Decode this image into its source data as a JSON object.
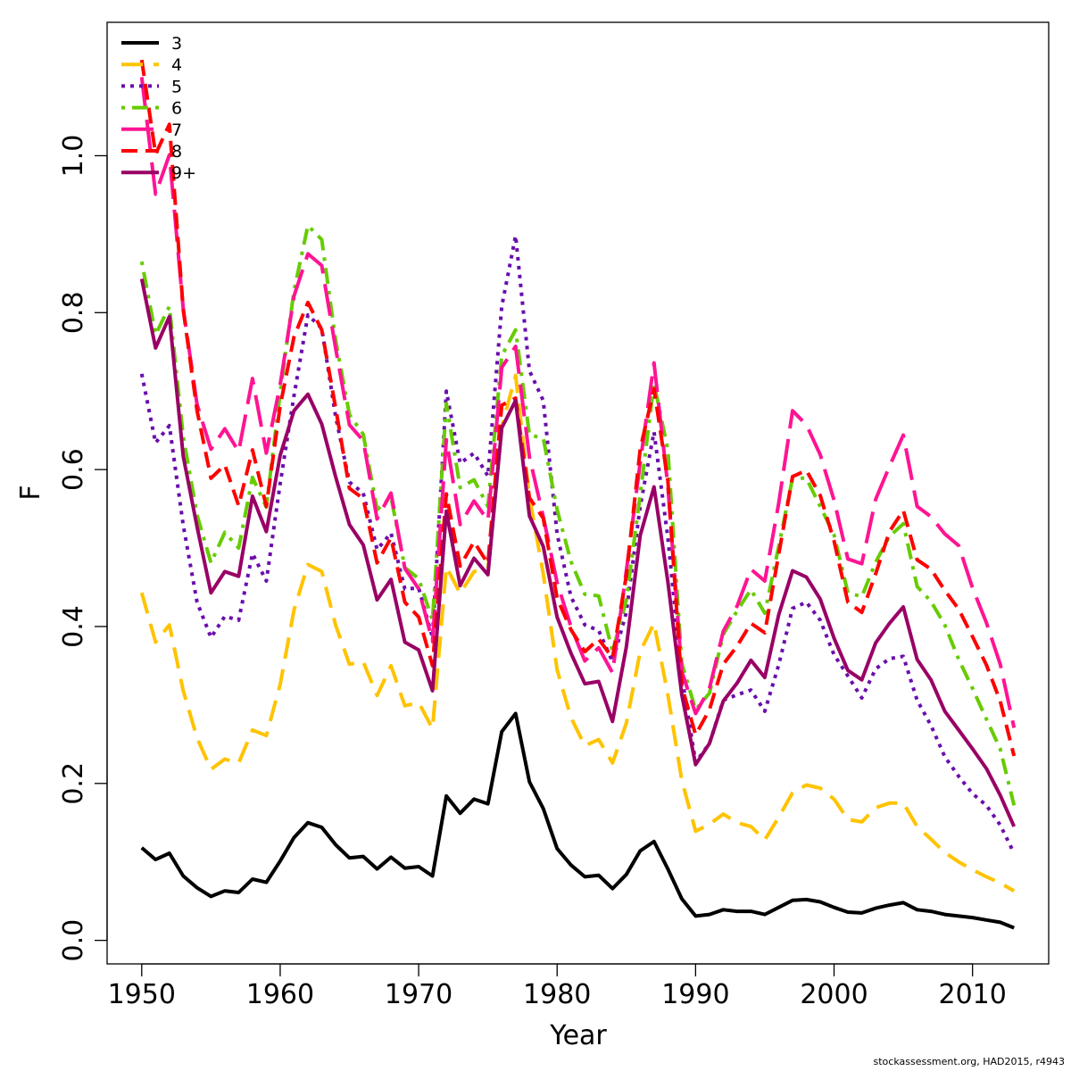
{
  "chart_data": {
    "type": "line",
    "xlabel": "Year",
    "ylabel": "F",
    "xlim": [
      1947.5,
      2015.5
    ],
    "ylim": [
      -0.03,
      1.17
    ],
    "xticks": [
      1950,
      1960,
      1970,
      1980,
      1990,
      2000,
      2010
    ],
    "yticks": [
      0.0,
      0.2,
      0.4,
      0.6,
      0.8,
      1.0
    ],
    "ytick_labels": [
      "0.0",
      "0.2",
      "0.4",
      "0.6",
      "0.8",
      "1.0"
    ],
    "legend_position": "top-left",
    "x": [
      1950,
      1951,
      1952,
      1953,
      1954,
      1955,
      1956,
      1957,
      1958,
      1959,
      1960,
      1961,
      1962,
      1963,
      1964,
      1965,
      1966,
      1967,
      1968,
      1969,
      1970,
      1971,
      1972,
      1973,
      1974,
      1975,
      1976,
      1977,
      1978,
      1979,
      1980,
      1981,
      1982,
      1983,
      1984,
      1985,
      1986,
      1987,
      1988,
      1989,
      1990,
      1991,
      1992,
      1993,
      1994,
      1995,
      1996,
      1997,
      1998,
      1999,
      2000,
      2001,
      2002,
      2003,
      2004,
      2005,
      2006,
      2007,
      2008,
      2009,
      2010,
      2011,
      2012,
      2013
    ],
    "series": [
      {
        "name": "3",
        "color": "#000000",
        "dash": "solid",
        "values": [
          0.118,
          0.103,
          0.111,
          0.082,
          0.067,
          0.056,
          0.063,
          0.061,
          0.078,
          0.074,
          0.101,
          0.131,
          0.15,
          0.144,
          0.122,
          0.105,
          0.107,
          0.091,
          0.106,
          0.092,
          0.094,
          0.082,
          0.184,
          0.162,
          0.18,
          0.174,
          0.266,
          0.289,
          0.202,
          0.168,
          0.117,
          0.096,
          0.081,
          0.083,
          0.066,
          0.084,
          0.114,
          0.126,
          0.091,
          0.053,
          0.031,
          0.033,
          0.039,
          0.037,
          0.037,
          0.033,
          0.042,
          0.051,
          0.052,
          0.049,
          0.042,
          0.036,
          0.035,
          0.041,
          0.045,
          0.048,
          0.039,
          0.037,
          0.033,
          0.031,
          0.029,
          0.026,
          0.023,
          0.016
        ]
      },
      {
        "name": "4",
        "color": "#FFC300",
        "dash": "longdash",
        "values": [
          0.443,
          0.38,
          0.402,
          0.318,
          0.258,
          0.218,
          0.231,
          0.226,
          0.268,
          0.261,
          0.326,
          0.421,
          0.479,
          0.47,
          0.402,
          0.352,
          0.355,
          0.312,
          0.35,
          0.299,
          0.303,
          0.27,
          0.476,
          0.442,
          0.47,
          0.474,
          0.655,
          0.72,
          0.565,
          0.467,
          0.345,
          0.284,
          0.248,
          0.256,
          0.226,
          0.277,
          0.368,
          0.404,
          0.313,
          0.204,
          0.139,
          0.148,
          0.161,
          0.15,
          0.145,
          0.128,
          0.157,
          0.188,
          0.198,
          0.194,
          0.18,
          0.154,
          0.151,
          0.169,
          0.175,
          0.175,
          0.145,
          0.129,
          0.112,
          0.1,
          0.09,
          0.081,
          0.073,
          0.063
        ]
      },
      {
        "name": "5",
        "color": "#6A0DAD",
        "dash": "dotted",
        "values": [
          0.722,
          0.634,
          0.656,
          0.529,
          0.431,
          0.386,
          0.413,
          0.408,
          0.493,
          0.458,
          0.582,
          0.694,
          0.797,
          0.78,
          0.668,
          0.584,
          0.57,
          0.498,
          0.519,
          0.448,
          0.449,
          0.386,
          0.7,
          0.608,
          0.621,
          0.592,
          0.808,
          0.898,
          0.726,
          0.688,
          0.518,
          0.438,
          0.402,
          0.395,
          0.355,
          0.418,
          0.553,
          0.648,
          0.513,
          0.336,
          0.227,
          0.251,
          0.306,
          0.313,
          0.319,
          0.292,
          0.351,
          0.423,
          0.431,
          0.408,
          0.364,
          0.337,
          0.309,
          0.346,
          0.359,
          0.362,
          0.306,
          0.274,
          0.234,
          0.209,
          0.187,
          0.172,
          0.147,
          0.111
        ]
      },
      {
        "name": "6",
        "color": "#66CC00",
        "dash": "dotdash",
        "values": [
          0.865,
          0.772,
          0.808,
          0.642,
          0.542,
          0.481,
          0.52,
          0.5,
          0.59,
          0.552,
          0.698,
          0.828,
          0.911,
          0.893,
          0.765,
          0.67,
          0.645,
          0.549,
          0.565,
          0.475,
          0.461,
          0.408,
          0.684,
          0.577,
          0.587,
          0.553,
          0.745,
          0.778,
          0.644,
          0.64,
          0.549,
          0.483,
          0.441,
          0.439,
          0.368,
          0.434,
          0.568,
          0.71,
          0.625,
          0.353,
          0.294,
          0.315,
          0.39,
          0.42,
          0.447,
          0.417,
          0.502,
          0.589,
          0.589,
          0.553,
          0.517,
          0.443,
          0.438,
          0.482,
          0.515,
          0.531,
          0.451,
          0.432,
          0.402,
          0.358,
          0.321,
          0.282,
          0.244,
          0.172
        ]
      },
      {
        "name": "7",
        "color": "#FF1493",
        "dash": "xlongdash",
        "values": [
          1.1,
          0.951,
          1.001,
          0.805,
          0.683,
          0.626,
          0.652,
          0.623,
          0.716,
          0.621,
          0.708,
          0.821,
          0.875,
          0.86,
          0.755,
          0.657,
          0.637,
          0.537,
          0.57,
          0.474,
          0.448,
          0.381,
          0.638,
          0.53,
          0.56,
          0.535,
          0.73,
          0.757,
          0.616,
          0.54,
          0.456,
          0.4,
          0.356,
          0.373,
          0.341,
          0.471,
          0.609,
          0.736,
          0.579,
          0.343,
          0.289,
          0.321,
          0.394,
          0.426,
          0.473,
          0.458,
          0.557,
          0.675,
          0.657,
          0.619,
          0.561,
          0.486,
          0.48,
          0.562,
          0.604,
          0.644,
          0.553,
          0.54,
          0.518,
          0.503,
          0.449,
          0.405,
          0.352,
          0.271
        ]
      },
      {
        "name": "8",
        "color": "#FF0000",
        "dash": "dashed",
        "values": [
          1.122,
          1.002,
          1.04,
          0.804,
          0.675,
          0.589,
          0.606,
          0.554,
          0.625,
          0.553,
          0.681,
          0.769,
          0.813,
          0.778,
          0.679,
          0.576,
          0.563,
          0.481,
          0.513,
          0.431,
          0.412,
          0.35,
          0.569,
          0.477,
          0.508,
          0.48,
          0.682,
          0.691,
          0.564,
          0.538,
          0.436,
          0.396,
          0.368,
          0.384,
          0.36,
          0.465,
          0.626,
          0.703,
          0.586,
          0.324,
          0.262,
          0.294,
          0.352,
          0.375,
          0.404,
          0.392,
          0.492,
          0.591,
          0.599,
          0.567,
          0.509,
          0.431,
          0.418,
          0.467,
          0.521,
          0.548,
          0.485,
          0.473,
          0.446,
          0.422,
          0.387,
          0.351,
          0.305,
          0.235
        ]
      },
      {
        "name": "9+",
        "color": "#990066",
        "dash": "solid",
        "values": [
          0.843,
          0.755,
          0.795,
          0.617,
          0.527,
          0.443,
          0.47,
          0.464,
          0.566,
          0.521,
          0.618,
          0.675,
          0.696,
          0.658,
          0.591,
          0.53,
          0.504,
          0.434,
          0.46,
          0.38,
          0.37,
          0.318,
          0.547,
          0.452,
          0.487,
          0.466,
          0.653,
          0.688,
          0.541,
          0.502,
          0.412,
          0.366,
          0.327,
          0.33,
          0.279,
          0.374,
          0.516,
          0.578,
          0.457,
          0.313,
          0.224,
          0.251,
          0.305,
          0.328,
          0.357,
          0.335,
          0.415,
          0.471,
          0.463,
          0.435,
          0.385,
          0.344,
          0.332,
          0.379,
          0.404,
          0.425,
          0.358,
          0.332,
          0.292,
          0.268,
          0.244,
          0.219,
          0.185,
          0.145
        ]
      }
    ]
  },
  "footer": {
    "credit": "stockassessment.org, HAD2015, r4943"
  }
}
